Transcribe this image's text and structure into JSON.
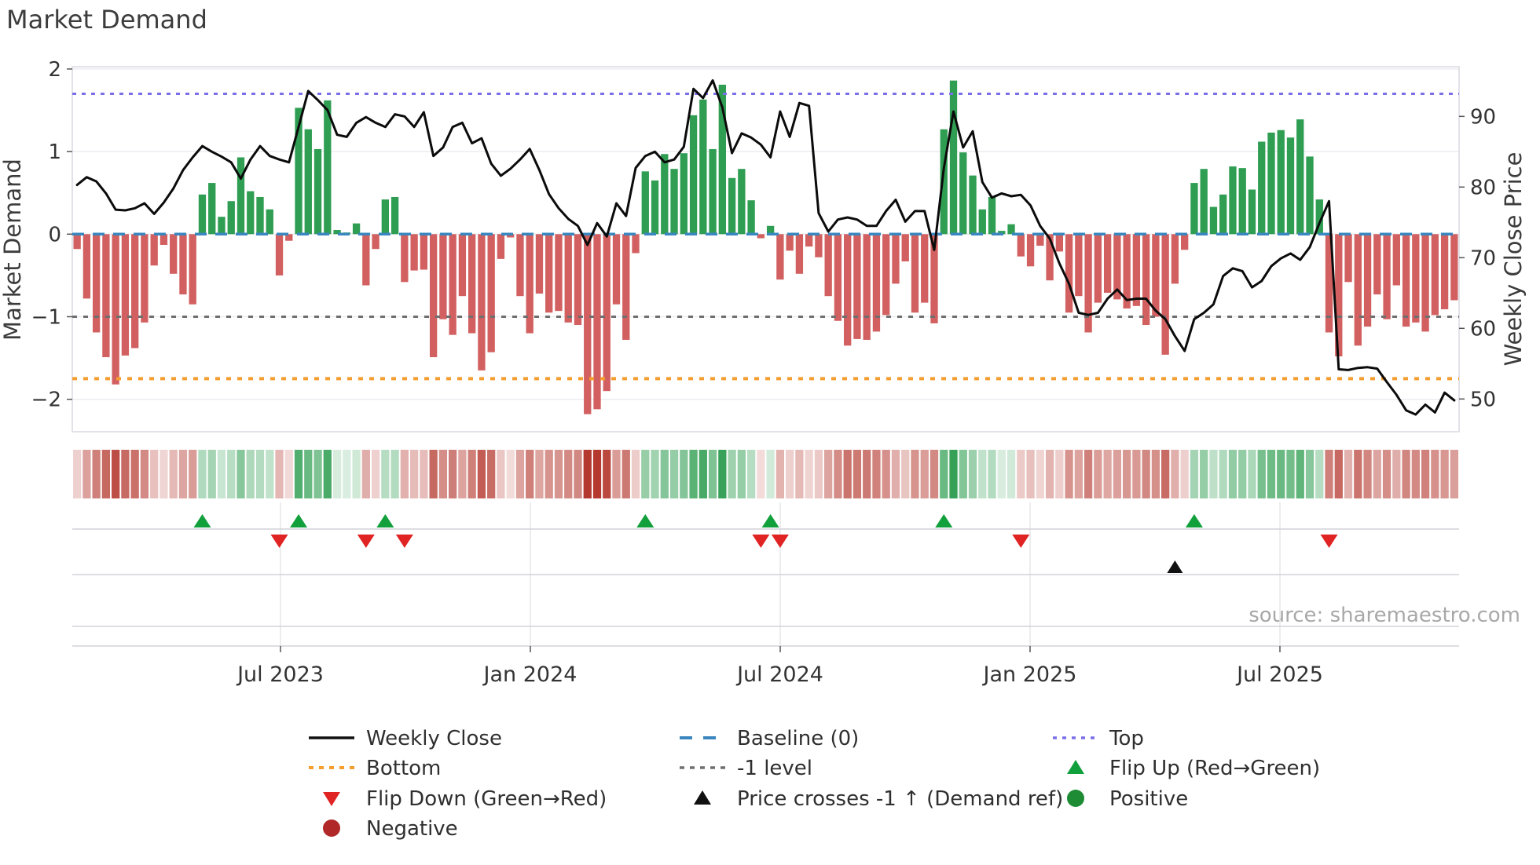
{
  "title": "Market Demand",
  "source_credit": "source: sharemaestro.com",
  "left_axis": {
    "label": "Market Demand",
    "ticks": [
      "2",
      "1",
      "0",
      "−1",
      "−2"
    ],
    "tick_values": [
      2,
      1,
      0,
      -1,
      -2
    ]
  },
  "right_axis": {
    "label": "Weekly Close Price",
    "ticks": [
      "90",
      "80",
      "70",
      "60",
      "50"
    ],
    "tick_values": [
      90,
      80,
      70,
      60,
      50
    ]
  },
  "x_axis": {
    "ticks": [
      "Jul 2023",
      "Jan 2024",
      "Jul 2024",
      "Jan 2025",
      "Jul 2025"
    ]
  },
  "colors": {
    "bar_positive": "#2f9e53",
    "bar_negative": "#d26060",
    "price_line": "#0b0b0b",
    "baseline": "#3a87bf",
    "top_line": "#7b6fe8",
    "bottom_line": "#f59d2f",
    "minus1_line": "#6f6f6f",
    "flip_up": "#12a03c",
    "flip_down": "#e02424",
    "price_cross": "#111111",
    "dot_negative": "#b02828",
    "dot_positive": "#1d8c35",
    "grid": "#ededf2",
    "spine": "#d9d9e2",
    "panel_grid": "#d2d2d8",
    "panel_vgrid": "#e7e7ec",
    "heat_pos_base": "#1f9644",
    "heat_neg_base": "#b4382e"
  },
  "legend": {
    "columns": [
      {
        "items": [
          {
            "icon": "line-black",
            "label": "Weekly Close"
          },
          {
            "icon": "dash-orange",
            "label": "Bottom"
          },
          {
            "icon": "tri-down-red",
            "label": "Flip Down (Green→Red)"
          },
          {
            "icon": "dot-darkred",
            "label": "Negative"
          }
        ]
      },
      {
        "items": [
          {
            "icon": "dash-blue",
            "label": "Baseline (0)"
          },
          {
            "icon": "dash-gray",
            "label": "-1 level"
          },
          {
            "icon": "tri-up-black",
            "label": "Price crosses -1 ↑ (Demand ref)"
          }
        ]
      },
      {
        "items": [
          {
            "icon": "dash-purple",
            "label": "Top"
          },
          {
            "icon": "tri-up-green",
            "label": "Flip Up (Red→Green)"
          },
          {
            "icon": "dot-green",
            "label": "Positive"
          }
        ]
      }
    ]
  },
  "chart_data": {
    "type": "bar+line",
    "x_unit": "weeks",
    "demand_ylim": [
      -2.35,
      2.03
    ],
    "price_ylim": [
      45.4,
      97.0
    ],
    "baseline": 0,
    "top_level": 1.7,
    "bottom_level": -1.75,
    "minus1_level": -1,
    "demand_bars": [
      -0.18,
      -0.78,
      -1.19,
      -1.49,
      -1.82,
      -1.47,
      -1.38,
      -1.07,
      -0.38,
      -0.13,
      -0.48,
      -0.73,
      -0.85,
      0.48,
      0.62,
      0.21,
      0.4,
      0.93,
      0.52,
      0.45,
      0.3,
      -0.5,
      -0.08,
      1.53,
      1.27,
      1.03,
      1.62,
      0.05,
      0.02,
      0.13,
      -0.62,
      -0.18,
      0.42,
      0.45,
      -0.58,
      -0.44,
      -0.43,
      -1.49,
      -1.03,
      -1.22,
      -0.75,
      -1.2,
      -1.65,
      -1.43,
      -0.3,
      -0.04,
      -0.75,
      -1.2,
      -0.72,
      -0.95,
      -0.93,
      -1.07,
      -1.1,
      -2.18,
      -2.12,
      -1.9,
      -0.85,
      -1.28,
      -0.23,
      0.76,
      0.65,
      0.97,
      0.79,
      0.98,
      1.44,
      1.63,
      1.03,
      1.81,
      0.68,
      0.79,
      0.41,
      -0.05,
      0.1,
      -0.55,
      -0.2,
      -0.48,
      -0.15,
      -0.28,
      -0.75,
      -1.05,
      -1.35,
      -1.27,
      -1.28,
      -1.18,
      -0.98,
      -0.6,
      -0.33,
      -0.95,
      -0.83,
      -1.08,
      1.27,
      1.86,
      0.99,
      0.71,
      0.3,
      0.45,
      0.04,
      0.12,
      -0.27,
      -0.39,
      -0.14,
      -0.56,
      -0.21,
      -0.95,
      -0.75,
      -1.19,
      -0.83,
      -0.71,
      -0.79,
      -0.9,
      -0.87,
      -1.1,
      -1.0,
      -1.46,
      -0.6,
      -0.19,
      0.62,
      0.79,
      0.33,
      0.48,
      0.82,
      0.8,
      0.54,
      1.12,
      1.23,
      1.26,
      1.17,
      1.39,
      0.94,
      0.42,
      -1.19,
      -1.48,
      -0.58,
      -1.35,
      -1.12,
      -0.73,
      -1.03,
      -0.62,
      -1.12,
      -1.07,
      -1.18,
      -0.98,
      -0.91,
      -0.8
    ],
    "weekly_close": [
      80.3,
      81.4,
      80.8,
      79.1,
      76.8,
      76.7,
      77.0,
      77.7,
      76.2,
      77.8,
      79.8,
      82.4,
      84.2,
      85.8,
      85.0,
      84.3,
      83.5,
      81.2,
      83.9,
      85.8,
      84.4,
      83.9,
      83.5,
      88.5,
      93.6,
      92.3,
      90.9,
      87.4,
      87.1,
      89.1,
      89.9,
      89.1,
      88.5,
      90.3,
      90.0,
      88.5,
      90.6,
      84.4,
      85.6,
      88.5,
      89.1,
      86.2,
      86.9,
      83.3,
      81.6,
      82.6,
      83.9,
      85.4,
      82.4,
      79.0,
      77.0,
      75.5,
      74.5,
      71.8,
      74.9,
      73.0,
      77.7,
      75.9,
      82.7,
      84.4,
      85.0,
      83.5,
      83.9,
      85.7,
      93.9,
      92.6,
      95.1,
      91.3,
      84.8,
      87.6,
      87.0,
      86.0,
      84.2,
      90.7,
      87.1,
      91.9,
      91.5,
      76.3,
      73.7,
      75.4,
      75.7,
      75.4,
      74.5,
      74.5,
      76.6,
      78.2,
      75.1,
      76.6,
      76.6,
      71.1,
      82.7,
      90.7,
      85.6,
      87.9,
      80.7,
      78.5,
      79.1,
      78.7,
      78.9,
      77.4,
      74.5,
      72.7,
      69.2,
      66.3,
      62.2,
      61.9,
      62.2,
      64.2,
      65.5,
      64.0,
      64.2,
      64.2,
      62.5,
      61.3,
      58.9,
      56.8,
      61.3,
      62.2,
      63.4,
      67.4,
      68.5,
      68.1,
      65.8,
      66.7,
      68.8,
      69.9,
      70.6,
      69.7,
      71.5,
      74.9,
      78.0,
      54.2,
      54.1,
      54.4,
      54.5,
      54.3,
      52.4,
      50.6,
      48.4,
      47.8,
      49.2,
      48.1,
      50.9,
      49.8
    ],
    "flip_up_idx": [
      13,
      23,
      32,
      59,
      72,
      90,
      116
    ],
    "flip_down_idx": [
      21,
      30,
      34,
      71,
      73,
      98,
      130
    ],
    "price_cross_idx": [
      114
    ],
    "heatmap": "demand_bars colormap (white→red for negative, white→green for positive)",
    "legend_position": "bottom",
    "grid": true
  }
}
